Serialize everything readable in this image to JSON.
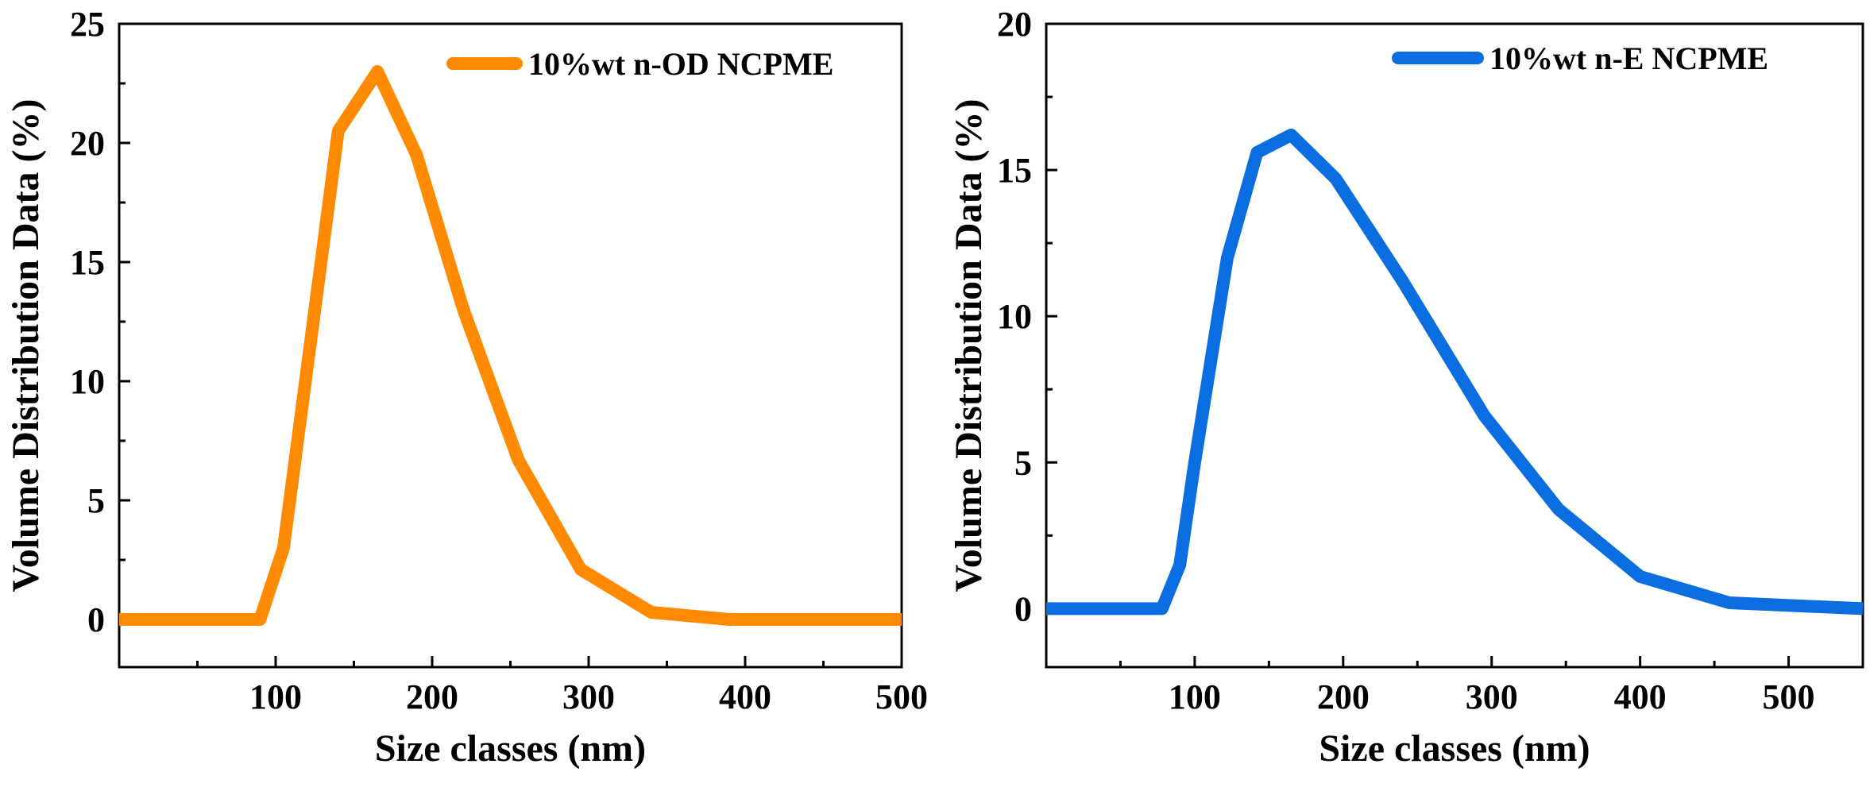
{
  "chart_data": [
    {
      "type": "line",
      "title": "",
      "xlabel": "Size classes (nm)",
      "ylabel": "Volume Distribution Data (%)",
      "xlim": [
        0,
        500
      ],
      "ylim": [
        -2,
        25
      ],
      "xticks": [
        100,
        200,
        300,
        400,
        500
      ],
      "xminor": [
        50,
        150,
        250,
        350,
        450
      ],
      "yticks": [
        0,
        5,
        10,
        15,
        20,
        25
      ],
      "legend": "top-right",
      "grid": false,
      "series": [
        {
          "name": "10%wt n-OD NCPME",
          "color": "#FF8A00",
          "x": [
            0,
            90,
            105,
            140,
            165,
            190,
            220,
            255,
            295,
            340,
            390,
            450,
            500
          ],
          "y": [
            0,
            0,
            3,
            20.5,
            23,
            19.5,
            13,
            6.7,
            2.1,
            0.3,
            0,
            0,
            0
          ]
        }
      ]
    },
    {
      "type": "line",
      "title": "",
      "xlabel": "Size classes (nm)",
      "ylabel": "Volume Distribution Data (%)",
      "xlim": [
        0,
        550
      ],
      "ylim": [
        -2,
        20
      ],
      "xticks": [
        100,
        200,
        300,
        400,
        500
      ],
      "xminor": [
        50,
        150,
        250,
        350,
        450
      ],
      "yticks": [
        0,
        5,
        10,
        15,
        20
      ],
      "legend": "top-right",
      "grid": false,
      "series": [
        {
          "name": "10%wt n-E NCPME",
          "color": "#0A6EE0",
          "x": [
            0,
            78,
            90,
            100,
            122,
            142,
            165,
            195,
            240,
            295,
            345,
            400,
            460,
            550
          ],
          "y": [
            0,
            0,
            1.5,
            5,
            12,
            15.6,
            16.2,
            14.7,
            11.2,
            6.6,
            3.4,
            1.1,
            0.2,
            0
          ]
        }
      ]
    }
  ]
}
